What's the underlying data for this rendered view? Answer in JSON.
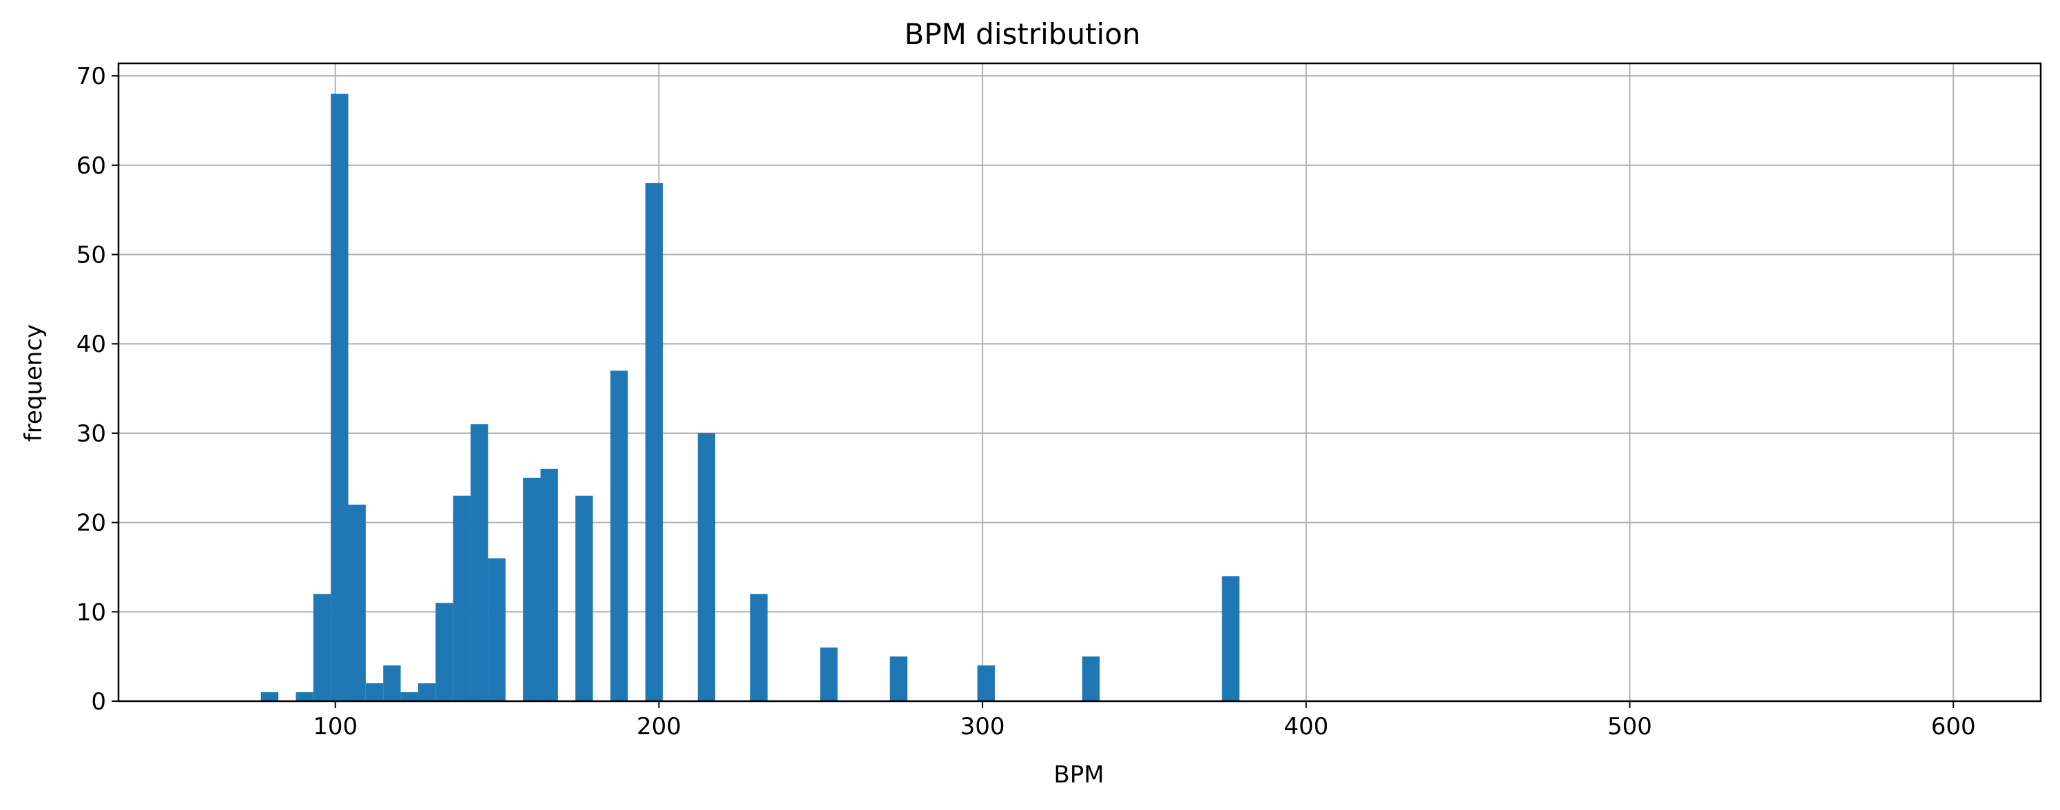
{
  "chart_data": {
    "type": "bar",
    "title": "BPM distribution",
    "xlabel": "BPM",
    "ylabel": "frequency",
    "xlim": [
      33,
      627
    ],
    "ylim": [
      0,
      71.4
    ],
    "grid": true,
    "x_ticks": [
      100,
      200,
      300,
      400,
      500,
      600
    ],
    "y_ticks": [
      0,
      10,
      20,
      30,
      40,
      50,
      60,
      70
    ],
    "bin_width": 5.4,
    "bar_color": "#1f77b4",
    "bins": [
      {
        "x0": 77.0,
        "count": 1
      },
      {
        "x0": 87.8,
        "count": 1
      },
      {
        "x0": 93.2,
        "count": 12
      },
      {
        "x0": 98.6,
        "count": 68
      },
      {
        "x0": 104.0,
        "count": 22
      },
      {
        "x0": 109.4,
        "count": 2
      },
      {
        "x0": 114.8,
        "count": 4
      },
      {
        "x0": 120.2,
        "count": 1
      },
      {
        "x0": 125.6,
        "count": 2
      },
      {
        "x0": 131.0,
        "count": 11
      },
      {
        "x0": 136.4,
        "count": 23
      },
      {
        "x0": 141.8,
        "count": 31
      },
      {
        "x0": 147.2,
        "count": 16
      },
      {
        "x0": 158.0,
        "count": 25
      },
      {
        "x0": 163.4,
        "count": 26
      },
      {
        "x0": 174.2,
        "count": 23
      },
      {
        "x0": 185.0,
        "count": 37
      },
      {
        "x0": 195.8,
        "count": 58
      },
      {
        "x0": 212.0,
        "count": 30
      },
      {
        "x0": 228.2,
        "count": 12
      },
      {
        "x0": 249.8,
        "count": 6
      },
      {
        "x0": 271.4,
        "count": 5
      },
      {
        "x0": 298.4,
        "count": 4
      },
      {
        "x0": 330.8,
        "count": 5
      },
      {
        "x0": 374.0,
        "count": 14
      }
    ]
  }
}
